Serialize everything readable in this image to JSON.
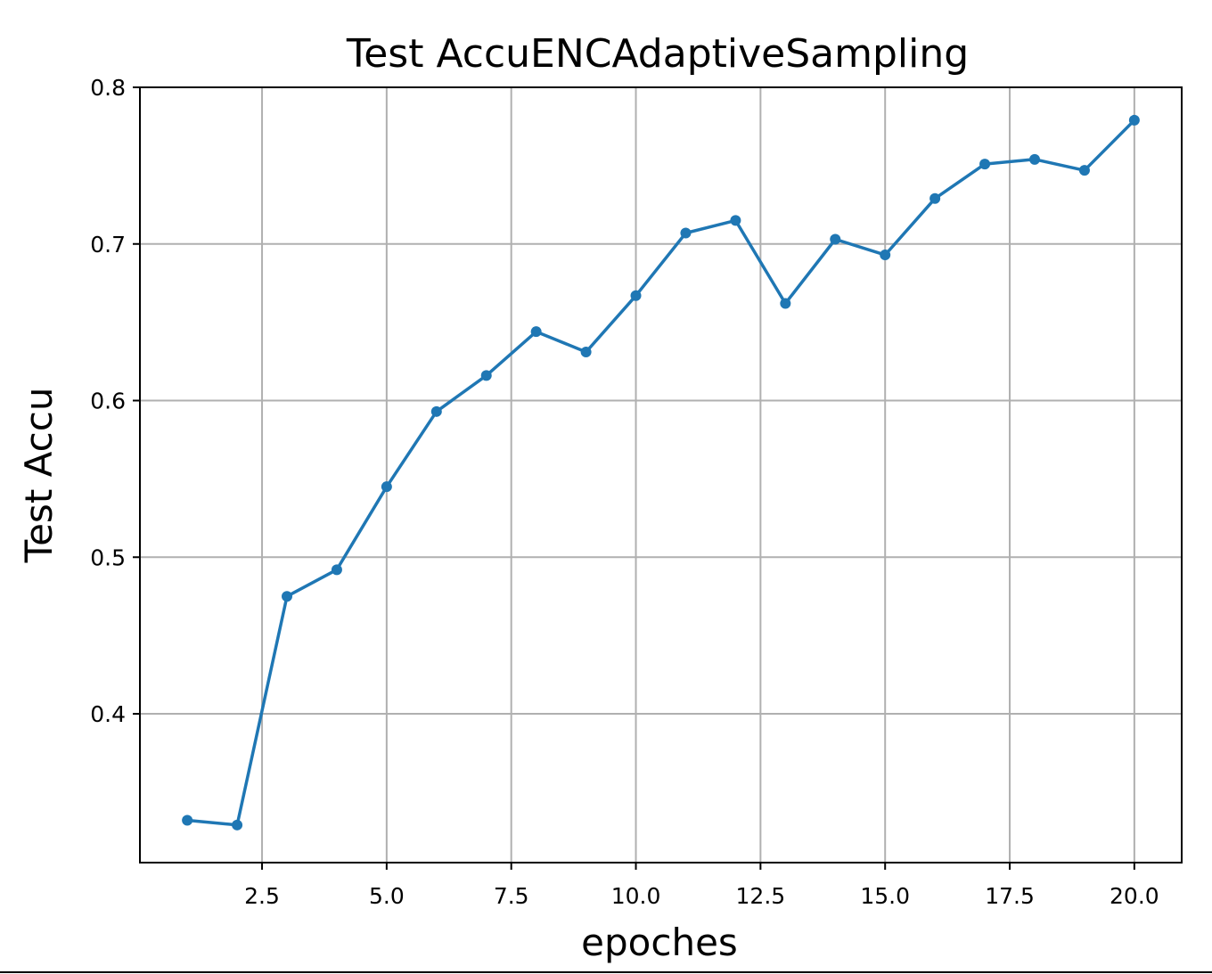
{
  "chart_data": {
    "type": "line",
    "title": "Test AccuENCAdaptiveSampling",
    "xlabel": "epoches",
    "ylabel": "Test Accu",
    "xlim": [
      0.05,
      20.95
    ],
    "ylim": [
      0.305,
      0.8
    ],
    "xticks": [
      2.5,
      5.0,
      7.5,
      10.0,
      12.5,
      15.0,
      17.5,
      20.0
    ],
    "xtick_labels": [
      "2.5",
      "5.0",
      "7.5",
      "10.0",
      "12.5",
      "15.0",
      "17.5",
      "20.0"
    ],
    "yticks": [
      0.4,
      0.5,
      0.6,
      0.7,
      0.8
    ],
    "ytick_labels": [
      "0.4",
      "0.5",
      "0.6",
      "0.7",
      "0.8"
    ],
    "grid": true,
    "line_color": "#1f77b4",
    "series": [
      {
        "x": [
          1,
          2,
          3,
          4,
          5,
          6,
          7,
          8,
          9,
          10,
          11,
          12,
          13,
          14,
          15,
          16,
          17,
          18,
          19,
          20
        ],
        "values": [
          0.332,
          0.329,
          0.475,
          0.492,
          0.545,
          0.593,
          0.616,
          0.644,
          0.631,
          0.667,
          0.707,
          0.715,
          0.662,
          0.703,
          0.693,
          0.729,
          0.751,
          0.754,
          0.747,
          0.779
        ]
      }
    ]
  }
}
